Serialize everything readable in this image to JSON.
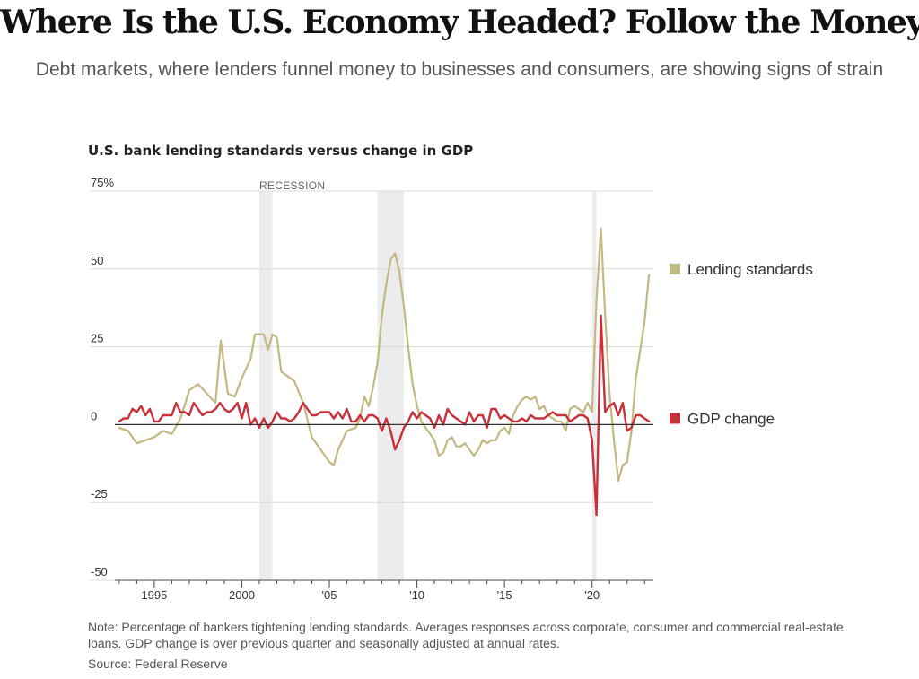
{
  "headline": "Where Is the U.S. Economy Headed? Follow the Money",
  "dek": "Debt markets, where lenders funnel money to businesses and consumers, are showing signs of strain",
  "note": "Note: Percentage of bankers tightening lending standards. Averages responses across corporate, consumer and commercial real-estate loans. GDP change is over previous quarter and seasonally adjusted at annual rates.",
  "source": "Source: Federal Reserve",
  "colors": {
    "lending": "#c4b882",
    "gdp": "#c8303a",
    "recession": "#ececec",
    "grid": "#dcdcdc",
    "zero": "#333333"
  },
  "chart_data": {
    "type": "line",
    "title": "U.S. bank lending standards versus change in GDP",
    "xlabel": "",
    "ylabel": "",
    "xlim": [
      1992.75,
      2023.5
    ],
    "ylim": [
      -50,
      75
    ],
    "y_ticks": [
      {
        "value": 75,
        "label": "75%"
      },
      {
        "value": 50,
        "label": "50"
      },
      {
        "value": 25,
        "label": "25"
      },
      {
        "value": 0,
        "label": "0"
      },
      {
        "value": -25,
        "label": "-25"
      },
      {
        "value": -50,
        "label": "-50"
      }
    ],
    "x_ticks": [
      {
        "value": 1995,
        "label": "1995"
      },
      {
        "value": 2000,
        "label": "2000"
      },
      {
        "value": 2005,
        "label": "'05"
      },
      {
        "value": 2010,
        "label": "'10"
      },
      {
        "value": 2015,
        "label": "'15"
      },
      {
        "value": 2020,
        "label": "'20"
      }
    ],
    "recessions": [
      {
        "start": 2001.0,
        "end": 2001.75,
        "label": "RECESSION"
      },
      {
        "start": 2007.75,
        "end": 2009.25,
        "label": ""
      },
      {
        "start": 2020.0,
        "end": 2020.25,
        "label": ""
      }
    ],
    "series": [
      {
        "name": "Lending standards",
        "color": "#c4b882",
        "points": [
          [
            1993.0,
            -1
          ],
          [
            1993.5,
            -2
          ],
          [
            1994.0,
            -6
          ],
          [
            1994.5,
            -5
          ],
          [
            1995.0,
            -4
          ],
          [
            1995.5,
            -2
          ],
          [
            1996.0,
            -3
          ],
          [
            1996.5,
            2
          ],
          [
            1997.0,
            11
          ],
          [
            1997.5,
            13
          ],
          [
            1998.0,
            10
          ],
          [
            1998.5,
            7
          ],
          [
            1998.8,
            27
          ],
          [
            1999.2,
            10
          ],
          [
            1999.6,
            9
          ],
          [
            2000.0,
            15
          ],
          [
            2000.5,
            21
          ],
          [
            2000.75,
            29
          ],
          [
            2001.25,
            29
          ],
          [
            2001.5,
            24
          ],
          [
            2001.75,
            29
          ],
          [
            2002.0,
            28
          ],
          [
            2002.25,
            17
          ],
          [
            2002.5,
            16
          ],
          [
            2003.0,
            14
          ],
          [
            2003.5,
            7
          ],
          [
            2004.0,
            -4
          ],
          [
            2004.5,
            -8
          ],
          [
            2005.0,
            -12
          ],
          [
            2005.25,
            -13
          ],
          [
            2005.5,
            -8
          ],
          [
            2006.0,
            -2
          ],
          [
            2006.5,
            -1
          ],
          [
            2006.75,
            2
          ],
          [
            2007.0,
            9
          ],
          [
            2007.25,
            6
          ],
          [
            2007.5,
            12
          ],
          [
            2007.75,
            20
          ],
          [
            2008.0,
            35
          ],
          [
            2008.25,
            45
          ],
          [
            2008.5,
            53
          ],
          [
            2008.75,
            55
          ],
          [
            2009.0,
            49
          ],
          [
            2009.25,
            38
          ],
          [
            2009.5,
            25
          ],
          [
            2009.75,
            13
          ],
          [
            2010.0,
            6
          ],
          [
            2010.25,
            1
          ],
          [
            2010.5,
            -1
          ],
          [
            2010.75,
            -3
          ],
          [
            2011.0,
            -5
          ],
          [
            2011.25,
            -10
          ],
          [
            2011.5,
            -9
          ],
          [
            2011.75,
            -5
          ],
          [
            2012.0,
            -4
          ],
          [
            2012.25,
            -7
          ],
          [
            2012.5,
            -7
          ],
          [
            2012.75,
            -6
          ],
          [
            2013.0,
            -8
          ],
          [
            2013.25,
            -10
          ],
          [
            2013.5,
            -8
          ],
          [
            2013.75,
            -5
          ],
          [
            2014.0,
            -6
          ],
          [
            2014.25,
            -5
          ],
          [
            2014.5,
            -5
          ],
          [
            2014.75,
            -2
          ],
          [
            2015.0,
            -1
          ],
          [
            2015.25,
            -3
          ],
          [
            2015.5,
            3
          ],
          [
            2015.75,
            6
          ],
          [
            2016.0,
            8
          ],
          [
            2016.25,
            9
          ],
          [
            2016.5,
            8
          ],
          [
            2016.75,
            9
          ],
          [
            2017.0,
            5
          ],
          [
            2017.25,
            6
          ],
          [
            2017.5,
            3
          ],
          [
            2017.75,
            2
          ],
          [
            2018.0,
            1
          ],
          [
            2018.25,
            1
          ],
          [
            2018.5,
            -2
          ],
          [
            2018.75,
            5
          ],
          [
            2019.0,
            6
          ],
          [
            2019.25,
            5
          ],
          [
            2019.5,
            4
          ],
          [
            2019.75,
            7
          ],
          [
            2020.0,
            4
          ],
          [
            2020.25,
            40
          ],
          [
            2020.5,
            63
          ],
          [
            2020.75,
            35
          ],
          [
            2021.0,
            10
          ],
          [
            2021.25,
            -5
          ],
          [
            2021.5,
            -18
          ],
          [
            2021.75,
            -13
          ],
          [
            2022.0,
            -12
          ],
          [
            2022.25,
            -2
          ],
          [
            2022.5,
            15
          ],
          [
            2022.75,
            24
          ],
          [
            2023.0,
            33
          ],
          [
            2023.25,
            48
          ]
        ]
      },
      {
        "name": "GDP change",
        "color": "#c8303a",
        "points": [
          [
            1993.0,
            1
          ],
          [
            1993.25,
            2
          ],
          [
            1993.5,
            2
          ],
          [
            1993.75,
            5
          ],
          [
            1994.0,
            4
          ],
          [
            1994.25,
            6
          ],
          [
            1994.5,
            3
          ],
          [
            1994.75,
            5
          ],
          [
            1995.0,
            1
          ],
          [
            1995.25,
            1
          ],
          [
            1995.5,
            3
          ],
          [
            1995.75,
            3
          ],
          [
            1996.0,
            3
          ],
          [
            1996.25,
            7
          ],
          [
            1996.5,
            4
          ],
          [
            1996.75,
            4
          ],
          [
            1997.0,
            3
          ],
          [
            1997.25,
            7
          ],
          [
            1997.5,
            5
          ],
          [
            1997.75,
            3
          ],
          [
            1998.0,
            4
          ],
          [
            1998.25,
            4
          ],
          [
            1998.5,
            5
          ],
          [
            1998.75,
            7
          ],
          [
            1999.0,
            5
          ],
          [
            1999.25,
            4
          ],
          [
            1999.5,
            5
          ],
          [
            1999.75,
            7
          ],
          [
            2000.0,
            2
          ],
          [
            2000.25,
            7
          ],
          [
            2000.5,
            0
          ],
          [
            2000.75,
            2
          ],
          [
            2001.0,
            -1
          ],
          [
            2001.25,
            2
          ],
          [
            2001.5,
            -1
          ],
          [
            2001.75,
            1
          ],
          [
            2002.0,
            4
          ],
          [
            2002.25,
            2
          ],
          [
            2002.5,
            2
          ],
          [
            2002.75,
            1
          ],
          [
            2003.0,
            2
          ],
          [
            2003.25,
            4
          ],
          [
            2003.5,
            7
          ],
          [
            2003.75,
            5
          ],
          [
            2004.0,
            3
          ],
          [
            2004.25,
            3
          ],
          [
            2004.5,
            4
          ],
          [
            2004.75,
            4
          ],
          [
            2005.0,
            4
          ],
          [
            2005.25,
            2
          ],
          [
            2005.5,
            4
          ],
          [
            2005.75,
            2
          ],
          [
            2006.0,
            5
          ],
          [
            2006.25,
            1
          ],
          [
            2006.5,
            1
          ],
          [
            2006.75,
            3
          ],
          [
            2007.0,
            1
          ],
          [
            2007.25,
            3
          ],
          [
            2007.5,
            3
          ],
          [
            2007.75,
            2
          ],
          [
            2008.0,
            -2
          ],
          [
            2008.25,
            2
          ],
          [
            2008.5,
            -2
          ],
          [
            2008.75,
            -8
          ],
          [
            2009.0,
            -5
          ],
          [
            2009.25,
            -1
          ],
          [
            2009.5,
            1
          ],
          [
            2009.75,
            4
          ],
          [
            2010.0,
            2
          ],
          [
            2010.25,
            4
          ],
          [
            2010.5,
            3
          ],
          [
            2010.75,
            2
          ],
          [
            2011.0,
            -1
          ],
          [
            2011.25,
            3
          ],
          [
            2011.5,
            0
          ],
          [
            2011.75,
            5
          ],
          [
            2012.0,
            3
          ],
          [
            2012.25,
            2
          ],
          [
            2012.5,
            1
          ],
          [
            2012.75,
            0
          ],
          [
            2013.0,
            4
          ],
          [
            2013.25,
            1
          ],
          [
            2013.5,
            3
          ],
          [
            2013.75,
            3
          ],
          [
            2014.0,
            -1
          ],
          [
            2014.25,
            5
          ],
          [
            2014.5,
            5
          ],
          [
            2014.75,
            2
          ],
          [
            2015.0,
            3
          ],
          [
            2015.25,
            2
          ],
          [
            2015.5,
            1
          ],
          [
            2015.75,
            1
          ],
          [
            2016.0,
            2
          ],
          [
            2016.25,
            1
          ],
          [
            2016.5,
            3
          ],
          [
            2016.75,
            2
          ],
          [
            2017.0,
            2
          ],
          [
            2017.25,
            2
          ],
          [
            2017.5,
            3
          ],
          [
            2017.75,
            4
          ],
          [
            2018.0,
            3
          ],
          [
            2018.25,
            3
          ],
          [
            2018.5,
            3
          ],
          [
            2018.75,
            1
          ],
          [
            2019.0,
            2
          ],
          [
            2019.25,
            3
          ],
          [
            2019.5,
            3
          ],
          [
            2019.75,
            2
          ],
          [
            2020.0,
            -5
          ],
          [
            2020.25,
            -29
          ],
          [
            2020.5,
            35
          ],
          [
            2020.75,
            4
          ],
          [
            2021.0,
            6
          ],
          [
            2021.25,
            7
          ],
          [
            2021.5,
            3
          ],
          [
            2021.75,
            7
          ],
          [
            2022.0,
            -2
          ],
          [
            2022.25,
            -1
          ],
          [
            2022.5,
            3
          ],
          [
            2022.75,
            3
          ],
          [
            2023.0,
            2
          ],
          [
            2023.25,
            1
          ]
        ]
      }
    ],
    "legend": [
      {
        "label": "Lending standards",
        "color": "#c4b882",
        "anchor_value": 50
      },
      {
        "label": "GDP change",
        "color": "#c8303a",
        "anchor_value": 2
      }
    ],
    "grid": true,
    "legend_placement": "right, at line ends"
  }
}
